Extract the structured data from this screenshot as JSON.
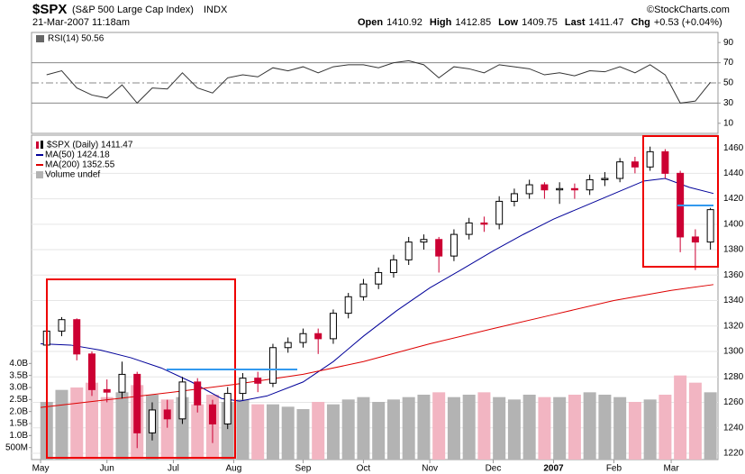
{
  "header": {
    "symbol": "$SPX",
    "name": "(S&P 500 Large Cap Index)",
    "exchange": "INDX",
    "timestamp": "21-Mar-2007 11:18am",
    "copyright": "©StockCharts.com",
    "quote": [
      {
        "label": "Open",
        "value": "1410.92"
      },
      {
        "label": "High",
        "value": "1412.85"
      },
      {
        "label": "Low",
        "value": "1409.75"
      },
      {
        "label": "Last",
        "value": "1411.47"
      },
      {
        "label": "Chg",
        "value": "+0.53 (+0.04%)"
      }
    ]
  },
  "chart_data": [
    {
      "type": "line",
      "title": "RSI(14) 50.56",
      "color": "#333333",
      "ylim": [
        0,
        100
      ],
      "yticks": [
        10,
        30,
        50,
        70,
        90
      ],
      "levels": [
        30,
        50,
        70
      ],
      "x": [
        2,
        7,
        12,
        17,
        22,
        27,
        32,
        37,
        42,
        47,
        52,
        57,
        62,
        67,
        72,
        77,
        82,
        87,
        92,
        97,
        102,
        107,
        112,
        117,
        122,
        127,
        132,
        137,
        142,
        147,
        152,
        157,
        162,
        167,
        172,
        177,
        182,
        187,
        192,
        197,
        202,
        207,
        212,
        217,
        222
      ],
      "values": [
        58,
        62,
        45,
        38,
        35,
        48,
        30,
        45,
        44,
        60,
        45,
        40,
        55,
        58,
        56,
        65,
        62,
        66,
        60,
        66,
        68,
        68,
        65,
        70,
        72,
        68,
        55,
        66,
        64,
        60,
        68,
        66,
        64,
        58,
        60,
        57,
        62,
        61,
        66,
        60,
        68,
        58,
        30,
        32,
        50.56
      ]
    },
    {
      "type": "candlestick",
      "title": "$SPX (Daily) 1411.47",
      "up_color": "#000000",
      "down_color": "#cc0033",
      "grid": true,
      "xlim": [
        -3,
        224.5
      ],
      "xticks": [
        {
          "value": 0,
          "label": "May"
        },
        {
          "value": 22,
          "label": "Jun"
        },
        {
          "value": 44,
          "label": "Jul"
        },
        {
          "value": 64,
          "label": "Aug"
        },
        {
          "value": 87,
          "label": "Sep"
        },
        {
          "value": 107,
          "label": "Oct"
        },
        {
          "value": 129,
          "label": "Nov"
        },
        {
          "value": 150,
          "label": "Dec"
        },
        {
          "value": 170,
          "label": "2007"
        },
        {
          "value": 190,
          "label": "Feb"
        },
        {
          "value": 209,
          "label": "Mar"
        }
      ],
      "ylim": [
        1215,
        1470
      ],
      "yticks": [
        1220,
        1240,
        1260,
        1280,
        1300,
        1320,
        1340,
        1360,
        1380,
        1400,
        1420,
        1440,
        1460
      ],
      "x": [
        2,
        7,
        12,
        17,
        22,
        27,
        32,
        37,
        42,
        47,
        52,
        57,
        62,
        67,
        72,
        77,
        82,
        87,
        92,
        97,
        102,
        107,
        112,
        117,
        122,
        127,
        132,
        137,
        142,
        147,
        152,
        157,
        162,
        167,
        172,
        177,
        182,
        187,
        192,
        197,
        202,
        207,
        212,
        217,
        222
      ],
      "open": [
        1305,
        1316,
        1325,
        1298,
        1270,
        1268,
        1282,
        1236,
        1254,
        1247,
        1276,
        1258,
        1243,
        1267,
        1279,
        1275,
        1303,
        1307,
        1314,
        1310,
        1330,
        1343,
        1353,
        1362,
        1372,
        1386,
        1388,
        1375,
        1392,
        1401,
        1400,
        1418,
        1424,
        1431,
        1427,
        1428,
        1427,
        1435,
        1436,
        1449,
        1445,
        1457,
        1440,
        1390,
        1386
      ],
      "high": [
        1320,
        1327,
        1326,
        1300,
        1278,
        1292,
        1284,
        1260,
        1262,
        1280,
        1279,
        1262,
        1272,
        1283,
        1284,
        1306,
        1311,
        1318,
        1318,
        1333,
        1346,
        1357,
        1366,
        1376,
        1390,
        1392,
        1390,
        1396,
        1405,
        1406,
        1422,
        1428,
        1435,
        1433,
        1433,
        1432,
        1439,
        1441,
        1452,
        1453,
        1461,
        1459,
        1442,
        1396,
        1412.85
      ],
      "low": [
        1300,
        1312,
        1293,
        1265,
        1260,
        1263,
        1224,
        1230,
        1240,
        1243,
        1252,
        1228,
        1239,
        1262,
        1268,
        1272,
        1299,
        1303,
        1298,
        1306,
        1326,
        1340,
        1349,
        1358,
        1368,
        1380,
        1362,
        1371,
        1388,
        1394,
        1396,
        1414,
        1420,
        1420,
        1416,
        1420,
        1423,
        1430,
        1433,
        1440,
        1442,
        1436,
        1378,
        1364,
        1380
      ],
      "close": [
        1316,
        1325,
        1298,
        1270,
        1268,
        1282,
        1236,
        1254,
        1247,
        1276,
        1258,
        1243,
        1267,
        1279,
        1275,
        1303,
        1307,
        1314,
        1310,
        1330,
        1343,
        1353,
        1362,
        1372,
        1386,
        1388,
        1375,
        1392,
        1401,
        1400,
        1418,
        1424,
        1431,
        1427,
        1428,
        1427,
        1435,
        1436,
        1449,
        1445,
        1457,
        1440,
        1390,
        1386,
        1411.47
      ],
      "lines": [
        {
          "name": "MA(50) 1424.18",
          "color": "#000099",
          "x": [
            0,
            10,
            20,
            30,
            40,
            50,
            60,
            66,
            75,
            87,
            97,
            107,
            118,
            129,
            140,
            150,
            160,
            170,
            180,
            190,
            200,
            207,
            215,
            223
          ],
          "values": [
            1306,
            1305,
            1301,
            1295,
            1287,
            1276,
            1263,
            1261,
            1265,
            1276,
            1292,
            1312,
            1332,
            1350,
            1365,
            1379,
            1392,
            1404,
            1414,
            1424,
            1434,
            1436,
            1429,
            1424.18
          ]
        },
        {
          "name": "MA(200) 1352.55",
          "color": "#dd0000",
          "x": [
            0,
            22,
            44,
            64,
            87,
            107,
            129,
            150,
            170,
            190,
            209,
            223
          ],
          "values": [
            1256,
            1262,
            1268,
            1274,
            1282,
            1292,
            1306,
            1318,
            1329,
            1340,
            1348,
            1352.55
          ]
        }
      ],
      "volume": {
        "name": "Volume undef",
        "up_color": "#b3b3b3",
        "down_color": "#f2b5c2",
        "ylim": [
          0,
          4800000000
        ],
        "yticks": [
          {
            "value": 500000000,
            "label": "500M"
          },
          {
            "value": 1000000000,
            "label": "1.0B"
          },
          {
            "value": 1500000000,
            "label": "1.5B"
          },
          {
            "value": 2000000000,
            "label": "2.0B"
          },
          {
            "value": 2500000000,
            "label": "2.5B"
          },
          {
            "value": 3000000000,
            "label": "3.0B"
          },
          {
            "value": 3500000000,
            "label": "3.5B"
          },
          {
            "value": 4000000000,
            "label": "4.0B"
          }
        ],
        "values": [
          2400000000,
          2900000000,
          3000000000,
          3200000000,
          2600000000,
          2800000000,
          3100000000,
          2700000000,
          2500000000,
          2600000000,
          2300000000,
          2700000000,
          2400000000,
          2500000000,
          2300000000,
          2300000000,
          2200000000,
          2100000000,
          2400000000,
          2300000000,
          2500000000,
          2600000000,
          2400000000,
          2500000000,
          2600000000,
          2700000000,
          2800000000,
          2600000000,
          2700000000,
          2800000000,
          2600000000,
          2500000000,
          2700000000,
          2600000000,
          2600000000,
          2700000000,
          2800000000,
          2700000000,
          2600000000,
          2400000000,
          2500000000,
          2700000000,
          3500000000,
          3200000000,
          2800000000
        ]
      }
    }
  ]
}
